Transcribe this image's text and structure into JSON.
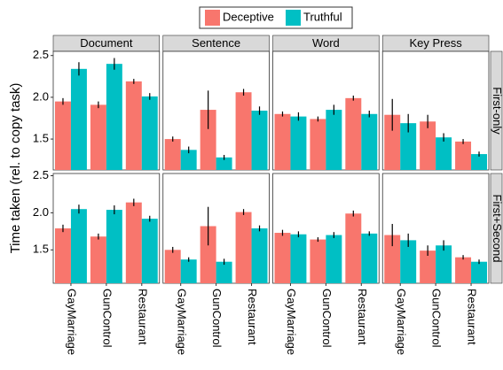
{
  "chart_data": {
    "type": "bar",
    "y_label": "Time taken (rel. to copy task)",
    "categories": [
      "GayMarriage",
      "GunControl",
      "Restaurant"
    ],
    "series": [
      {
        "name": "Deceptive",
        "color": "#F8766D"
      },
      {
        "name": "Truthful",
        "color": "#00BFC4"
      }
    ],
    "columns": [
      "Document",
      "Sentence",
      "Word",
      "Key Press"
    ],
    "grid": false,
    "rows": [
      {
        "label": "First-only",
        "ylim": [
          1.13,
          2.55
        ],
        "yticks": [
          1.5,
          {
            "value": 2,
            "label": "2.0"
          },
          2.5
        ],
        "panels": [
          {
            "series": [
              {
                "values": [
                  1.95,
                  1.91,
                  2.19
                ],
                "errors": [
                  0.04,
                  0.04,
                  0.03
                ]
              },
              {
                "values": [
                  2.34,
                  2.4,
                  2.01
                ],
                "errors": [
                  0.08,
                  0.07,
                  0.04
                ]
              }
            ]
          },
          {
            "series": [
              {
                "values": [
                  1.5,
                  1.85,
                  2.06
                ],
                "errors": [
                  0.03,
                  0.23,
                  0.04
                ]
              },
              {
                "values": [
                  1.37,
                  1.28,
                  1.84
                ],
                "errors": [
                  0.04,
                  0.03,
                  0.05
                ]
              }
            ]
          },
          {
            "series": [
              {
                "values": [
                  1.8,
                  1.74,
                  1.99
                ],
                "errors": [
                  0.03,
                  0.03,
                  0.03
                ]
              },
              {
                "values": [
                  1.77,
                  1.85,
                  1.8
                ],
                "errors": [
                  0.05,
                  0.06,
                  0.04
                ]
              }
            ]
          },
          {
            "series": [
              {
                "values": [
                  1.79,
                  1.71,
                  1.47
                ],
                "errors": [
                  0.19,
                  0.08,
                  0.03
                ]
              },
              {
                "values": [
                  1.69,
                  1.52,
                  1.32
                ],
                "errors": [
                  0.11,
                  0.05,
                  0.03
                ]
              }
            ]
          }
        ]
      },
      {
        "label": "First+Second",
        "ylim": [
          1.05,
          2.53
        ],
        "yticks": [
          1.5,
          {
            "value": 2,
            "label": "2.0"
          },
          2.5
        ],
        "panels": [
          {
            "series": [
              {
                "values": [
                  1.79,
                  1.68,
                  2.14
                ],
                "errors": [
                  0.05,
                  0.04,
                  0.05
                ]
              },
              {
                "values": [
                  2.05,
                  2.04,
                  1.92
                ],
                "errors": [
                  0.06,
                  0.06,
                  0.04
                ]
              }
            ]
          },
          {
            "series": [
              {
                "values": [
                  1.5,
                  1.82,
                  2.01
                ],
                "errors": [
                  0.04,
                  0.26,
                  0.04
                ]
              },
              {
                "values": [
                  1.37,
                  1.34,
                  1.79
                ],
                "errors": [
                  0.03,
                  0.04,
                  0.04
                ]
              }
            ]
          },
          {
            "series": [
              {
                "values": [
                  1.73,
                  1.64,
                  1.99
                ],
                "errors": [
                  0.04,
                  0.03,
                  0.04
                ]
              },
              {
                "values": [
                  1.71,
                  1.7,
                  1.72
                ],
                "errors": [
                  0.04,
                  0.04,
                  0.03
                ]
              }
            ]
          },
          {
            "series": [
              {
                "values": [
                  1.7,
                  1.49,
                  1.4
                ],
                "errors": [
                  0.15,
                  0.07,
                  0.03
                ]
              },
              {
                "values": [
                  1.63,
                  1.56,
                  1.34
                ],
                "errors": [
                  0.09,
                  0.07,
                  0.03
                ]
              }
            ]
          }
        ]
      }
    ]
  }
}
